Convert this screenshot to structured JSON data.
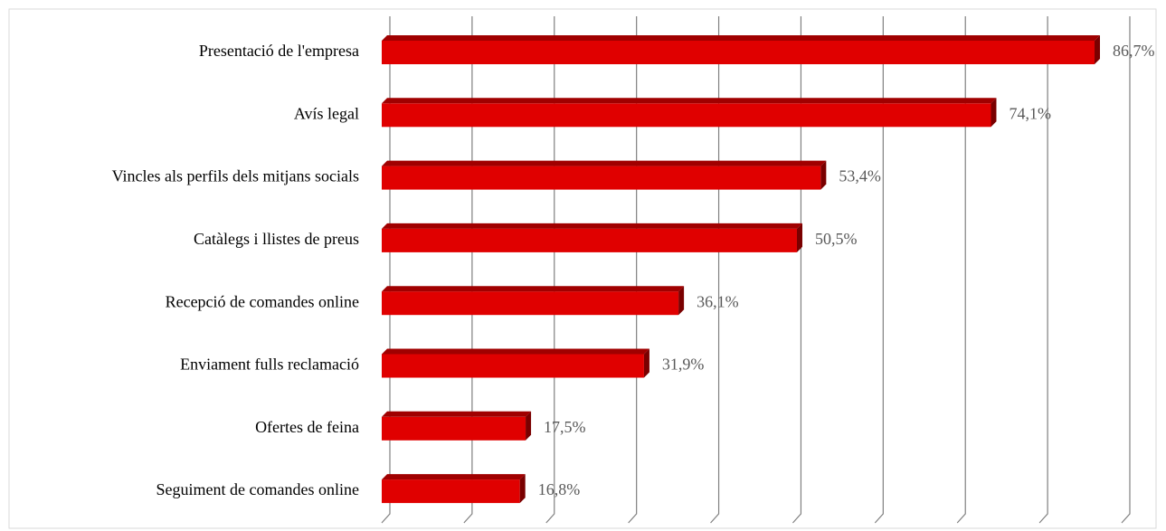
{
  "chart_data": {
    "type": "bar3d_horizontal",
    "categories": [
      "Presentació de l'empresa",
      "Avís legal",
      "Vincles als perfils dels mitjans socials",
      "Catàlegs i llistes de preus",
      "Recepció de comandes online",
      "Enviament fulls reclamació",
      "Ofertes de feina",
      "Seguiment de comandes online"
    ],
    "values": [
      86.7,
      74.1,
      53.4,
      50.5,
      36.1,
      31.9,
      17.5,
      16.8
    ],
    "value_labels": [
      "86,7%",
      "74,1%",
      "53,4%",
      "50,5%",
      "36,1%",
      "31,9%",
      "17,5%",
      "16,8%"
    ],
    "color": "#e00000",
    "xlim": [
      0,
      90
    ],
    "xticks": [
      0,
      10,
      20,
      30,
      40,
      50,
      60,
      70,
      80,
      90
    ],
    "grid": true
  }
}
